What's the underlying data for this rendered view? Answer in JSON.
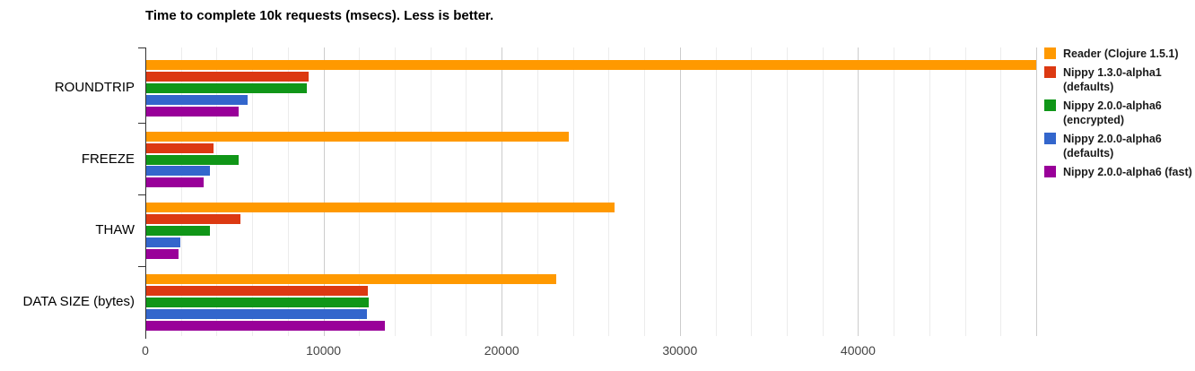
{
  "page": {
    "background": "#ffffff"
  },
  "chart_data": {
    "type": "bar",
    "orientation": "horizontal",
    "title": "Time to complete 10k requests (msecs). Less is better.",
    "categories": [
      "ROUNDTRIP",
      "FREEZE",
      "THAW",
      "DATA SIZE (bytes)"
    ],
    "series": [
      {
        "name": "Reader (Clojure 1.5.1)",
        "legend_lines": [
          "Reader (Clojure 1.5.1)"
        ],
        "color": "#FF9900",
        "values": [
          50000,
          23700,
          26300,
          23000
        ]
      },
      {
        "name": "Nippy 1.3.0-alpha1 (defaults)",
        "legend_lines": [
          "Nippy 1.3.0-alpha1",
          "(defaults)"
        ],
        "color": "#DC3912",
        "values": [
          9100,
          3800,
          5300,
          12460
        ]
      },
      {
        "name": "Nippy 2.0.0-alpha6 (encrypted)",
        "legend_lines": [
          "Nippy 2.0.0-alpha6",
          "(encrypted)"
        ],
        "color": "#109618",
        "values": [
          9000,
          5200,
          3600,
          12500
        ]
      },
      {
        "name": "Nippy 2.0.0-alpha6 (defaults)",
        "legend_lines": [
          "Nippy 2.0.0-alpha6",
          "(defaults)"
        ],
        "color": "#3366CC",
        "values": [
          5700,
          3550,
          1900,
          12400
        ]
      },
      {
        "name": "Nippy 2.0.0-alpha6 (fast)",
        "legend_lines": [
          "Nippy 2.0.0-alpha6 (fast)"
        ],
        "color": "#990099",
        "values": [
          5200,
          3200,
          1800,
          13390
        ]
      }
    ],
    "xlim": [
      0,
      50000
    ],
    "x_ticks": [
      0,
      10000,
      20000,
      30000,
      40000
    ],
    "grid": {
      "minor_step": 2000,
      "major_step": 10000,
      "minor_color": "#ECECEC",
      "major_color": "#CCCCCC"
    },
    "axis_color": "#333333",
    "tick_label_color": "#444444",
    "legend_position": "right"
  }
}
